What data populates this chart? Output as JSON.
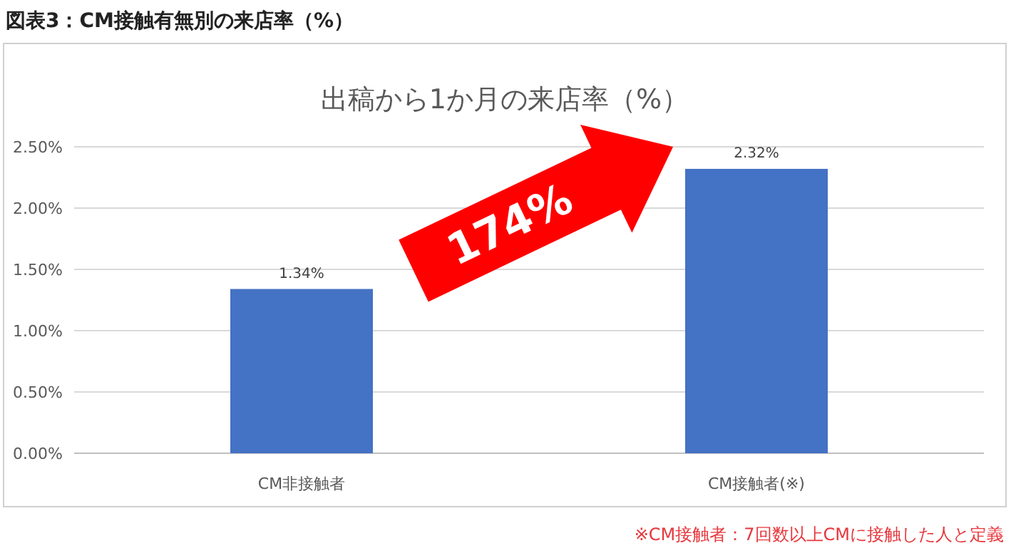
{
  "chart_data": {
    "type": "bar",
    "title": "図表3：CM接触有無別の来店率（%）",
    "subtitle": "出稿から1か月の来店率（%）",
    "categories": [
      "CM非接触者",
      "CM接触者(※)"
    ],
    "values": [
      1.34,
      2.32
    ],
    "value_labels": [
      "1.34%",
      "2.32%"
    ],
    "color": "#4472c4",
    "ylim": [
      0,
      2.5
    ],
    "yticks": [
      {
        "value": 0,
        "label": "0.00%"
      },
      {
        "value": 0.5,
        "label": "0.50%"
      },
      {
        "value": 1,
        "label": "1.00%"
      },
      {
        "value": 1.5,
        "label": "1.50%"
      },
      {
        "value": 2,
        "label": "2.00%"
      },
      {
        "value": 2.5,
        "label": "2.50%"
      }
    ],
    "grid": "y",
    "annotations": [
      "174%",
      "※CM接触者：7回数以上CMに接触した人と定義"
    ]
  }
}
